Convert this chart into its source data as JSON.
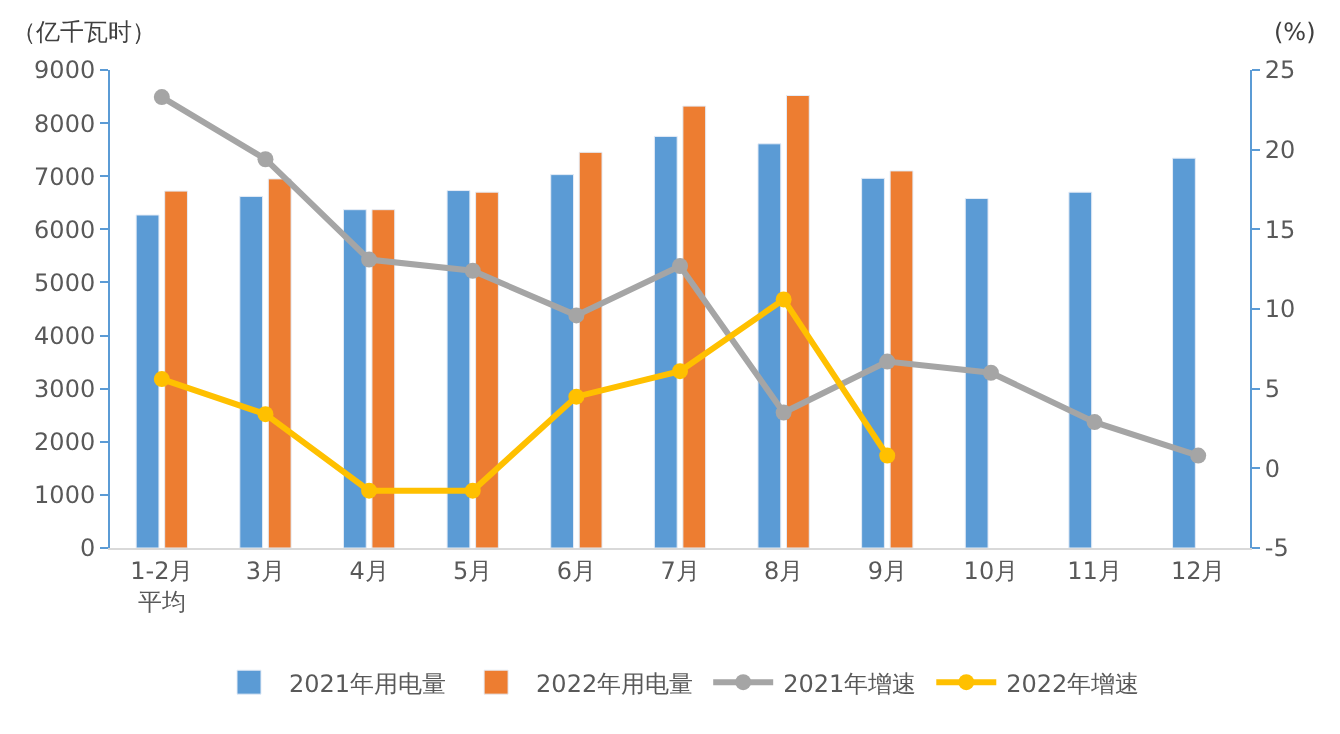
{
  "chart_data": {
    "type": "bar",
    "ylabel": "（亿千瓦时）",
    "y2label": "(%)",
    "categories": [
      "1-2月平均",
      "3月",
      "4月",
      "5月",
      "6月",
      "7月",
      "8月",
      "9月",
      "10月",
      "11月",
      "12月"
    ],
    "series": [
      {
        "name": "2021年用电量",
        "color": "#5b9bd5",
        "values": [
          6270,
          6620,
          6370,
          6730,
          7030,
          7750,
          7610,
          6960,
          6580,
          6700,
          7340
        ]
      },
      {
        "name": "2022年用电量",
        "color": "#ed7d31",
        "values": [
          6720,
          6950,
          6370,
          6700,
          7450,
          8320,
          8520,
          7100,
          null,
          null,
          null
        ]
      },
      {
        "name": "2021年增速",
        "type": "line",
        "axis": "y2",
        "color": "#a5a5a5",
        "values": [
          23.3,
          19.4,
          13.1,
          12.4,
          9.6,
          12.7,
          3.5,
          6.7,
          6.0,
          2.9,
          0.8
        ]
      },
      {
        "name": "2022年增速",
        "type": "line",
        "axis": "y2",
        "color": "#ffc000",
        "values": [
          5.6,
          3.4,
          -1.4,
          -1.4,
          4.5,
          6.1,
          10.6,
          0.8,
          null,
          null,
          null
        ]
      }
    ],
    "ylim": [
      0,
      9000
    ],
    "yticks": [
      0,
      1000,
      2000,
      3000,
      4000,
      5000,
      6000,
      7000,
      8000,
      9000
    ],
    "y2lim": [
      -5,
      25
    ],
    "y2ticks": [
      -5,
      0,
      5,
      10,
      15,
      20,
      25
    ],
    "legend": "bottom",
    "marker": "circle",
    "line_style": "solid"
  }
}
